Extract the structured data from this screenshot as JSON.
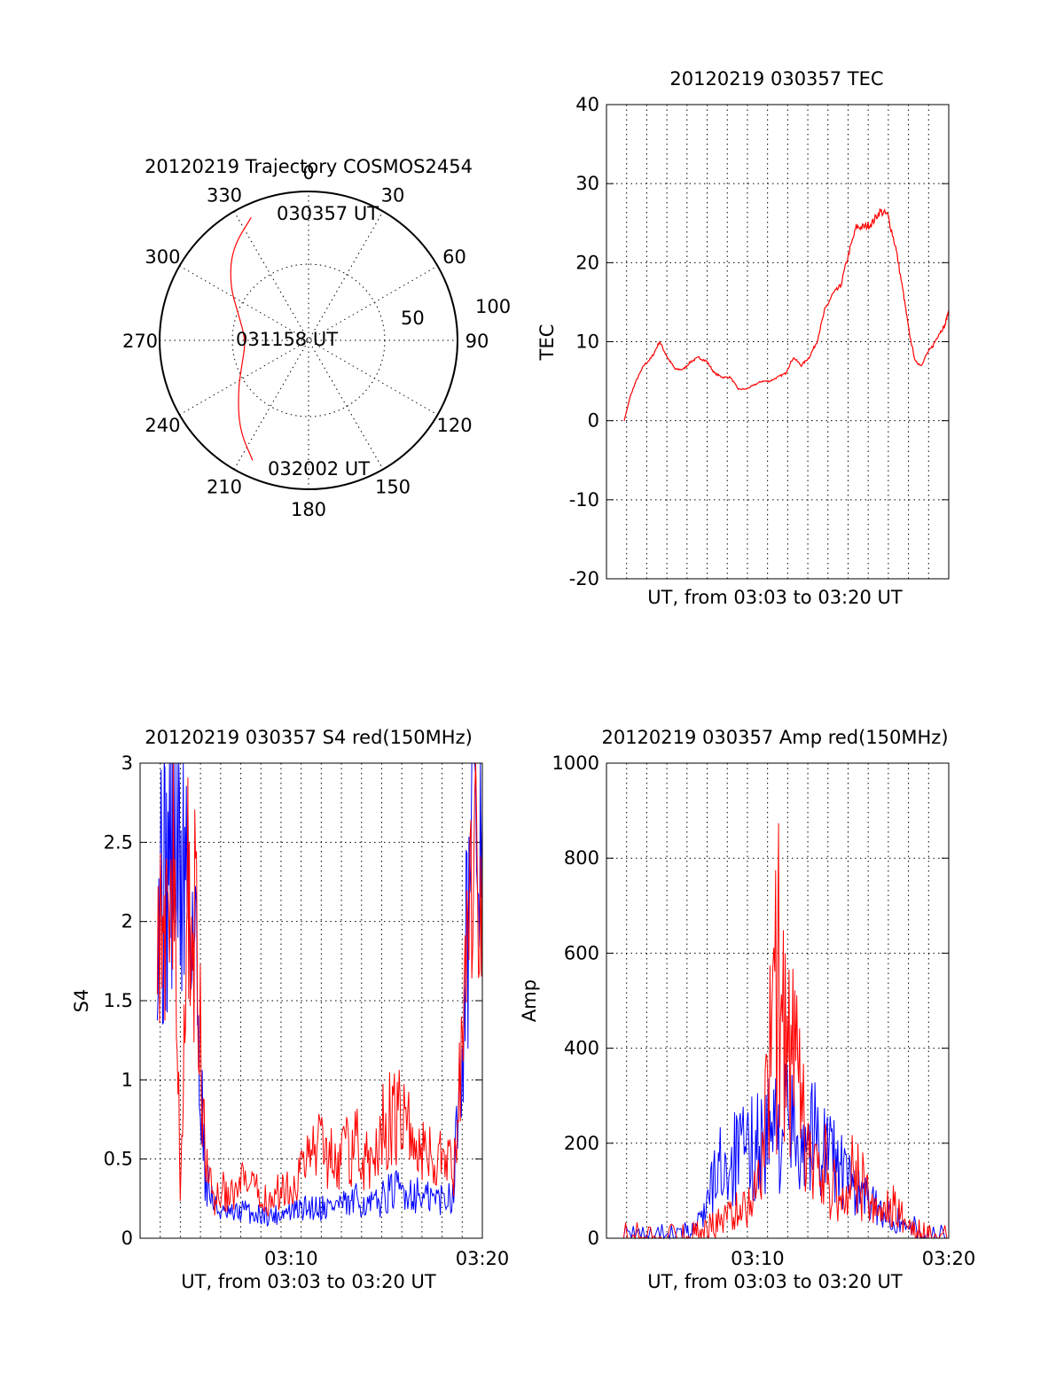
{
  "chart_data": [
    {
      "type": "polar",
      "title": "20120219 Trajectory COSMOS2454",
      "azimuth_labels": [
        "0",
        "30",
        "60",
        "90",
        "120",
        "150",
        "180",
        "210",
        "240",
        "270",
        "300",
        "330"
      ],
      "elevation_labels": [
        "50",
        "100"
      ],
      "time_labels": [
        {
          "text": "030357 UT",
          "az": 355,
          "el": 8
        },
        {
          "text": "031158 UT",
          "az": 270,
          "el": 72
        },
        {
          "text": "032002 UT",
          "az": 200,
          "el": 10
        }
      ],
      "series": [
        {
          "color": "#ff0000",
          "points": [
            [
              335,
              8
            ],
            [
              320,
              18
            ],
            [
              305,
              32
            ],
            [
              290,
              45
            ],
            [
              270,
              52
            ],
            [
              252,
              48
            ],
            [
              235,
              38
            ],
            [
              218,
              22
            ],
            [
              205,
              10
            ]
          ]
        }
      ]
    },
    {
      "type": "line",
      "title": "20120219 030357 TEC",
      "xlabel": "UT, from 03:03 to 03:20 UT",
      "ylabel": "TEC",
      "ylim": [
        -20,
        40
      ],
      "yticks": [
        "-20",
        "-10",
        "0",
        "10",
        "20",
        "30",
        "40"
      ],
      "xlim": [
        0,
        16.5
      ],
      "series": [
        {
          "color": "#ff0000",
          "x": [
            0,
            0.3,
            0.6,
            1,
            1.4,
            1.8,
            2.2,
            2.6,
            3,
            3.4,
            3.8,
            4.2,
            4.6,
            5,
            5.4,
            5.8,
            6.2,
            6.6,
            7,
            7.4,
            7.8,
            8.2,
            8.6,
            9,
            9.4,
            9.8,
            10.2,
            10.6,
            11,
            11.4,
            11.8,
            12.2,
            12.6,
            13,
            13.4,
            13.8,
            14.2,
            14.5,
            14.8,
            15.1,
            15.4,
            15.7,
            16,
            16.3,
            16.5
          ],
          "y": [
            0,
            3,
            5,
            7,
            8,
            10,
            8,
            6.5,
            6.5,
            7.5,
            8,
            7.5,
            6,
            5.5,
            5.5,
            4,
            4,
            4.5,
            5,
            5,
            5.5,
            6,
            8,
            7,
            8,
            10,
            14,
            16,
            17,
            21,
            24.5,
            24.5,
            25,
            26.5,
            26,
            22,
            16,
            11,
            7.5,
            7,
            8.5,
            9.5,
            11,
            12,
            14
          ]
        }
      ]
    },
    {
      "type": "line",
      "title": "20120219 030357 S4 red(150MHz)",
      "xlabel": "UT, from 03:03 to 03:20 UT",
      "ylabel": "S4",
      "ylim": [
        0,
        3
      ],
      "yticks": [
        "0",
        "0.5",
        "1",
        "1.5",
        "2",
        "2.5",
        "3"
      ],
      "xlim": [
        0,
        17
      ],
      "xticks": [
        {
          "value": 7,
          "label": "03:10"
        },
        {
          "value": 17,
          "label": "03:20"
        }
      ],
      "series": [
        {
          "color": "#ff0000",
          "x": [
            0,
            0.4,
            0.8,
            1.2,
            1.6,
            2,
            2.5,
            3,
            3.5,
            4,
            4.5,
            5,
            5.5,
            6,
            6.5,
            7,
            7.5,
            8,
            8.5,
            9,
            9.5,
            10,
            10.5,
            11,
            11.5,
            12,
            12.5,
            13,
            13.5,
            14,
            14.5,
            15,
            15.5,
            16,
            16.5,
            17
          ],
          "y": [
            2.8,
            1.5,
            2.9,
            0.2,
            2.2,
            1.9,
            0.5,
            0.25,
            0.3,
            0.25,
            0.35,
            0.3,
            0.25,
            0.25,
            0.3,
            0.35,
            0.4,
            0.55,
            0.6,
            0.55,
            0.5,
            0.55,
            0.6,
            0.45,
            0.6,
            0.75,
            0.8,
            0.7,
            0.6,
            0.55,
            0.5,
            0.5,
            0.45,
            1.2,
            2.4,
            2.6
          ]
        },
        {
          "color": "#0000ff",
          "x": [
            0,
            0.4,
            0.8,
            1.2,
            1.6,
            2,
            2.5,
            3,
            3.5,
            4,
            4.5,
            5,
            5.5,
            6,
            6.5,
            7,
            7.5,
            8,
            8.5,
            9,
            9.5,
            10,
            10.5,
            11,
            11.5,
            12,
            12.5,
            13,
            13.5,
            14,
            14.5,
            15,
            15.5,
            16,
            16.5,
            17
          ],
          "y": [
            2.5,
            2.2,
            2.6,
            2.3,
            2.4,
            1.8,
            0.4,
            0.2,
            0.15,
            0.15,
            0.18,
            0.15,
            0.15,
            0.14,
            0.16,
            0.17,
            0.18,
            0.2,
            0.2,
            0.2,
            0.22,
            0.2,
            0.25,
            0.2,
            0.22,
            0.28,
            0.3,
            0.3,
            0.28,
            0.25,
            0.25,
            0.25,
            0.3,
            1.5,
            2.7,
            2.7
          ]
        }
      ]
    },
    {
      "type": "line",
      "title": "20120219 030357 Amp red(150MHz)",
      "xlabel": "UT, from 03:03 to 03:20 UT",
      "ylabel": "Amp",
      "ylim": [
        0,
        1000
      ],
      "yticks": [
        "0",
        "200",
        "400",
        "600",
        "800",
        "1000"
      ],
      "xlim": [
        0,
        17
      ],
      "xticks": [
        {
          "value": 7,
          "label": "03:10"
        },
        {
          "value": 17,
          "label": "03:20"
        }
      ],
      "series": [
        {
          "color": "#ff0000",
          "x": [
            0,
            1,
            2,
            3,
            3.5,
            4,
            4.5,
            5,
            5.5,
            6,
            6.5,
            7,
            7.5,
            8,
            8.5,
            9,
            9.5,
            10,
            10.5,
            11,
            11.5,
            12,
            12.5,
            13,
            13.5,
            14,
            14.5,
            15,
            15.5,
            16,
            17
          ],
          "y": [
            0,
            0,
            0,
            0,
            2,
            10,
            20,
            35,
            50,
            60,
            70,
            120,
            260,
            560,
            400,
            330,
            200,
            120,
            150,
            100,
            80,
            140,
            110,
            60,
            50,
            70,
            50,
            30,
            5,
            0,
            0
          ]
        },
        {
          "color": "#0000ff",
          "x": [
            0,
            1,
            2,
            3,
            3.5,
            4,
            4.5,
            5,
            5.5,
            6,
            6.5,
            7,
            7.5,
            8,
            8.5,
            9,
            9.5,
            10,
            10.5,
            11,
            11.5,
            12,
            12.5,
            13,
            13.5,
            14,
            14.5,
            15,
            15.5,
            16,
            17
          ],
          "y": [
            0,
            0,
            0,
            0,
            10,
            40,
            90,
            150,
            160,
            170,
            180,
            200,
            210,
            230,
            240,
            225,
            220,
            215,
            200,
            170,
            130,
            110,
            90,
            70,
            55,
            45,
            35,
            25,
            5,
            0,
            0
          ]
        }
      ]
    }
  ]
}
